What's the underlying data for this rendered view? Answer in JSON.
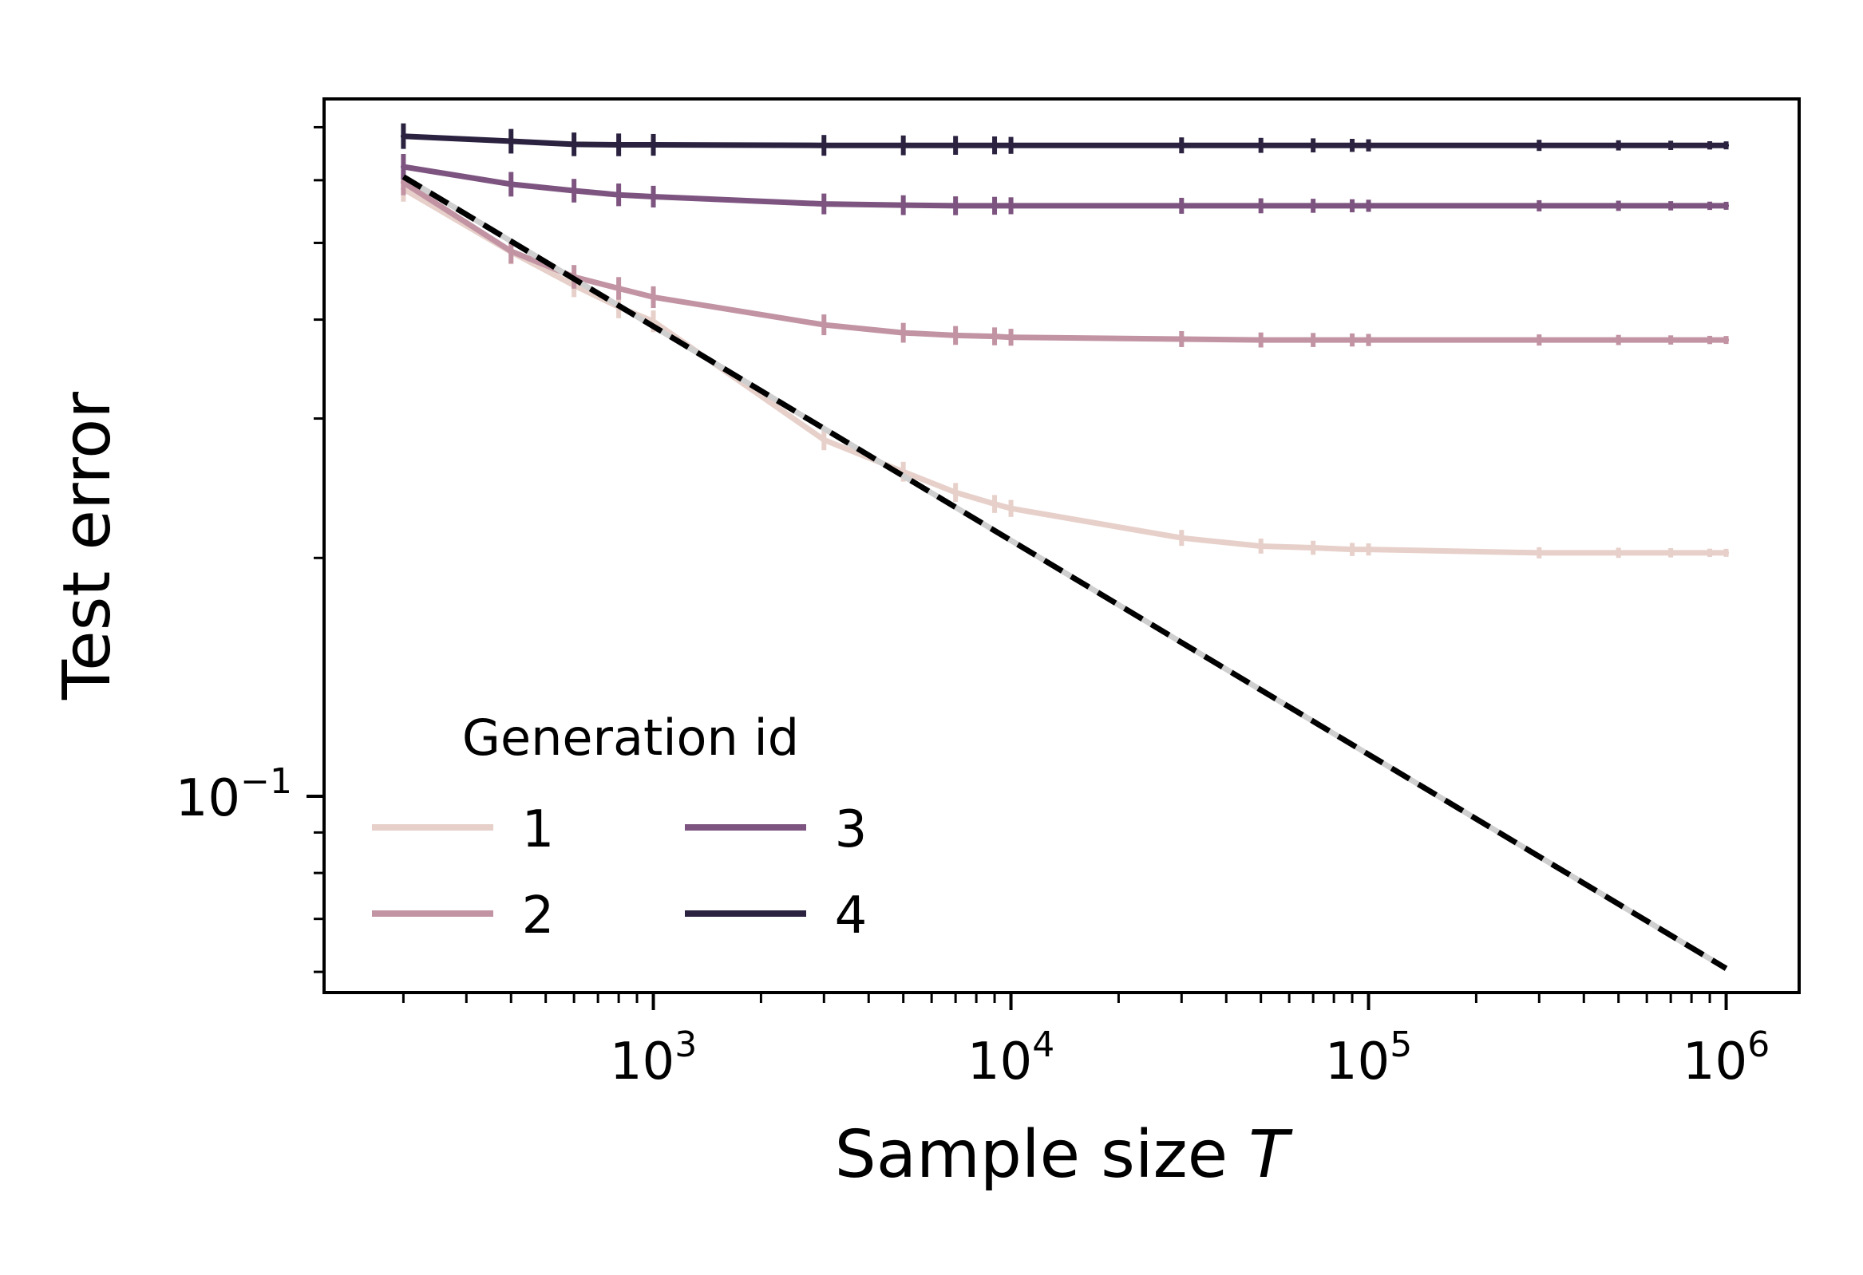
{
  "chart_data": {
    "type": "line",
    "xscale": "log",
    "yscale": "log",
    "xlabel": "Sample size",
    "xlabel_var": "T",
    "ylabel": "Test error",
    "xlim": [
      120,
      1600000
    ],
    "ylim": [
      0.0565,
      0.76
    ],
    "x": [
      200,
      400,
      600,
      800,
      1000,
      3000,
      5000,
      7000,
      9000,
      10000,
      30000,
      50000,
      70000,
      90000,
      100000,
      300000,
      500000,
      700000,
      900000,
      1000000
    ],
    "series": [
      {
        "name": "1",
        "color": "#e7d0ca",
        "values": [
          0.585,
          0.487,
          0.442,
          0.415,
          0.398,
          0.282,
          0.257,
          0.242,
          0.234,
          0.231,
          0.212,
          0.207,
          0.206,
          0.205,
          0.205,
          0.203,
          0.203,
          0.203,
          0.203,
          0.203
        ]
      },
      {
        "name": "2",
        "color": "#c294a3",
        "values": [
          0.596,
          0.488,
          0.453,
          0.438,
          0.427,
          0.394,
          0.385,
          0.382,
          0.381,
          0.38,
          0.378,
          0.377,
          0.377,
          0.377,
          0.377,
          0.377,
          0.377,
          0.377,
          0.377,
          0.377
        ]
      },
      {
        "name": "3",
        "color": "#7d5480",
        "values": [
          0.624,
          0.593,
          0.582,
          0.575,
          0.572,
          0.56,
          0.558,
          0.557,
          0.557,
          0.557,
          0.557,
          0.557,
          0.557,
          0.557,
          0.557,
          0.557,
          0.557,
          0.557,
          0.557,
          0.557
        ]
      },
      {
        "name": "4",
        "color": "#2b2240",
        "values": [
          0.682,
          0.672,
          0.666,
          0.665,
          0.665,
          0.664,
          0.664,
          0.664,
          0.664,
          0.664,
          0.664,
          0.664,
          0.664,
          0.664,
          0.664,
          0.664,
          0.664,
          0.664,
          0.664,
          0.664
        ]
      }
    ],
    "reference_line": {
      "style": "dashed",
      "color": "#000000",
      "x": [
        200,
        1000000
      ],
      "y": [
        0.606,
        0.0606
      ]
    },
    "x_ticks": [
      {
        "value": 1000,
        "base": "10",
        "exp": "3"
      },
      {
        "value": 10000,
        "base": "10",
        "exp": "4"
      },
      {
        "value": 100000,
        "base": "10",
        "exp": "5"
      },
      {
        "value": 1000000,
        "base": "10",
        "exp": "6"
      }
    ],
    "y_ticks": [
      {
        "value": 0.1,
        "base": "10",
        "exp": "−1"
      }
    ],
    "legend": {
      "title": "Generation id",
      "location": "lower-left",
      "columns": 2
    }
  }
}
